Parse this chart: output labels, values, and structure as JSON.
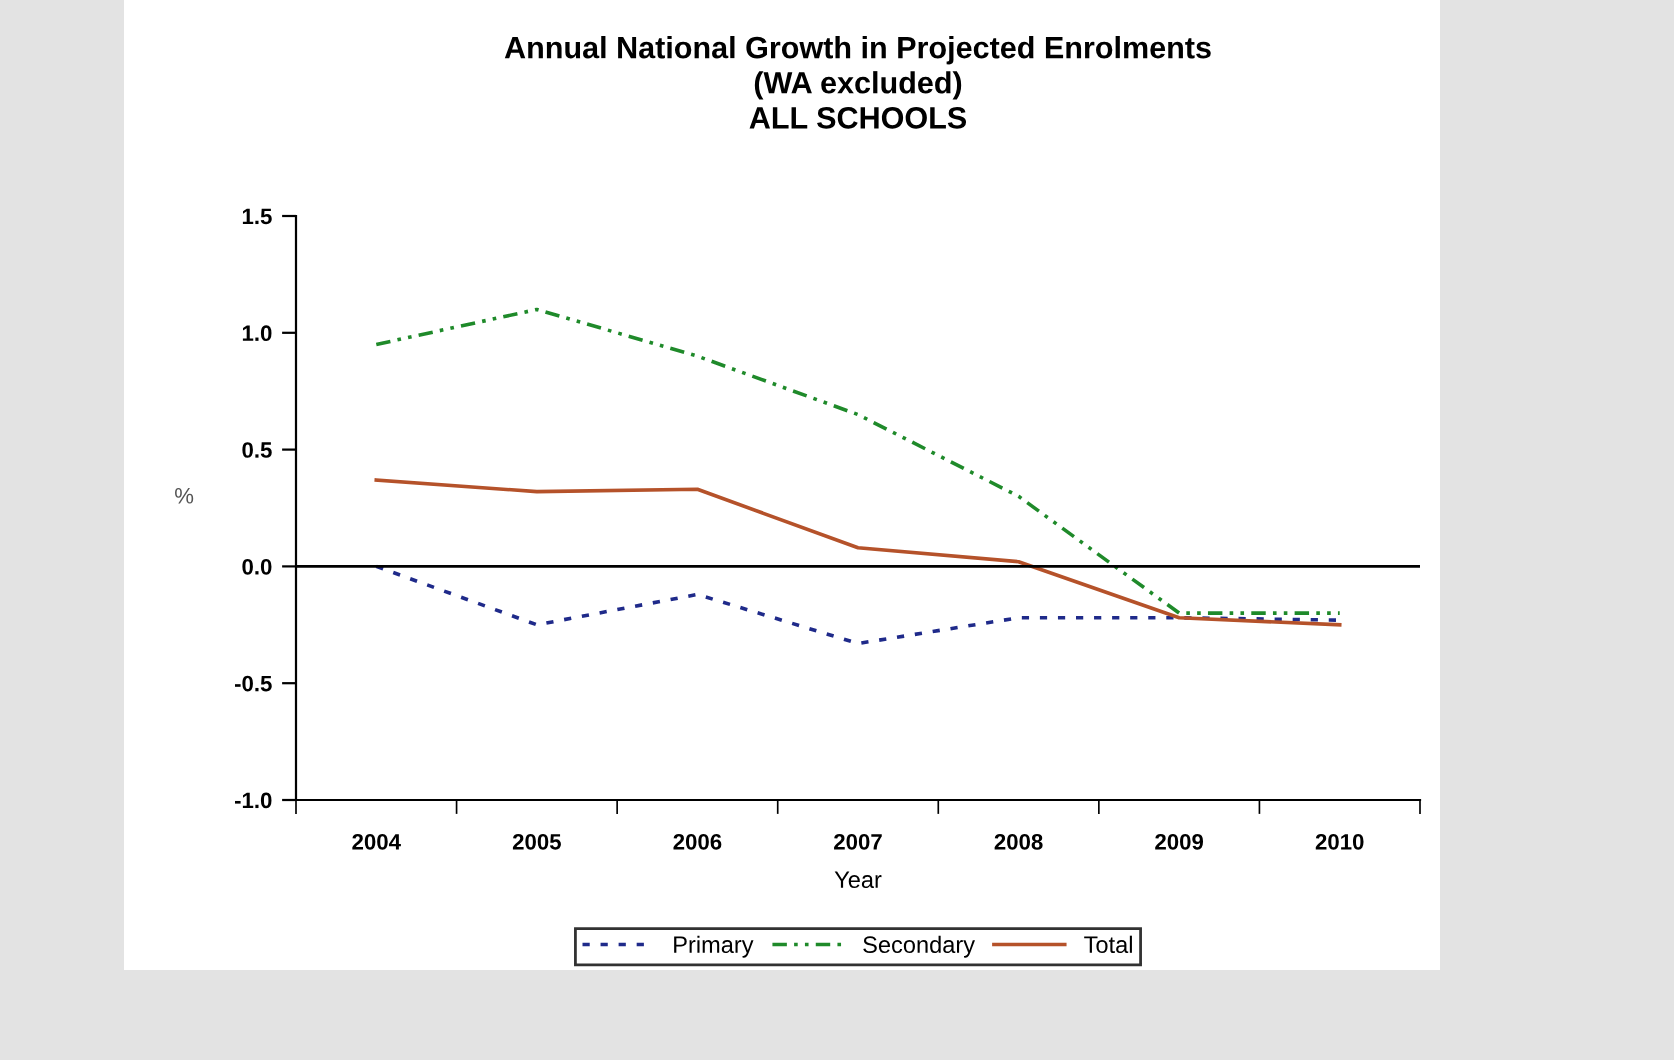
{
  "chart_data": {
    "type": "line",
    "title": "Annual National Growth in Projected Enrolments\n(WA excluded)\nALL SCHOOLS",
    "xlabel": "Year",
    "ylabel": "%",
    "categories": [
      "2004",
      "2005",
      "2006",
      "2007",
      "2008",
      "2009",
      "2010"
    ],
    "series": [
      {
        "name": "Primary",
        "color": "#1f2a8a",
        "line_style": "dotted",
        "values": [
          0.0,
          -0.25,
          -0.12,
          -0.33,
          -0.22,
          -0.22,
          -0.23
        ]
      },
      {
        "name": "Secondary",
        "color": "#1f8a2a",
        "line_style": "dashed",
        "values": [
          0.95,
          1.1,
          0.9,
          0.65,
          0.3,
          -0.2,
          -0.2
        ]
      },
      {
        "name": "Total",
        "color": "#b5522a",
        "line_style": "solid",
        "values": [
          0.37,
          0.32,
          0.33,
          0.08,
          0.02,
          -0.22,
          -0.25
        ]
      }
    ],
    "ylim": [
      -1.0,
      1.5
    ],
    "yticks": [
      {
        "value": -1.0,
        "label": "-1.0"
      },
      {
        "value": -0.5,
        "label": "-0.5"
      },
      {
        "value": 0.0,
        "label": "0.0"
      },
      {
        "value": 0.5,
        "label": "0.5"
      },
      {
        "value": 1.0,
        "label": "1.0"
      },
      {
        "value": 1.5,
        "label": "1.5"
      }
    ],
    "ref_lines": [
      {
        "axis": "y",
        "value": 0.0,
        "color": "#000000"
      }
    ],
    "grid": false,
    "legend": "bottom",
    "marker": "none"
  }
}
